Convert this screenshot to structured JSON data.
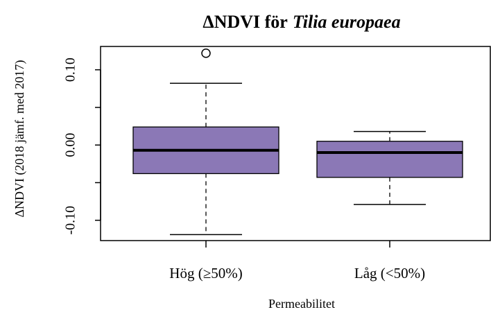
{
  "chart_data": {
    "type": "box",
    "title": "ΔNDVI för",
    "title_species": "Tilia europaea",
    "x_label": "Permeabilitet",
    "y_label": "ΔNDVI (2018 jämf. med 2017)",
    "categories": [
      "Hög (≥50%)",
      "Låg (<50%)"
    ],
    "color": "#8b78b6",
    "boxes": [
      {
        "whisker_low": -0.119,
        "q1": -0.038,
        "median": -0.007,
        "q3": 0.024,
        "whisker_high": 0.082,
        "outliers": [
          0.122
        ]
      },
      {
        "whisker_low": -0.079,
        "q1": -0.043,
        "median": -0.01,
        "q3": 0.005,
        "whisker_high": 0.018,
        "outliers": []
      }
    ],
    "ylim": [
      -0.127,
      0.131
    ],
    "yticks": [
      {
        "value": -0.1,
        "label": "-0.10"
      },
      {
        "value": 0,
        "label": "0.00"
      },
      {
        "value": 0.1,
        "label": "0.10"
      }
    ],
    "yticks_minor": [
      -0.05,
      0.05
    ]
  }
}
